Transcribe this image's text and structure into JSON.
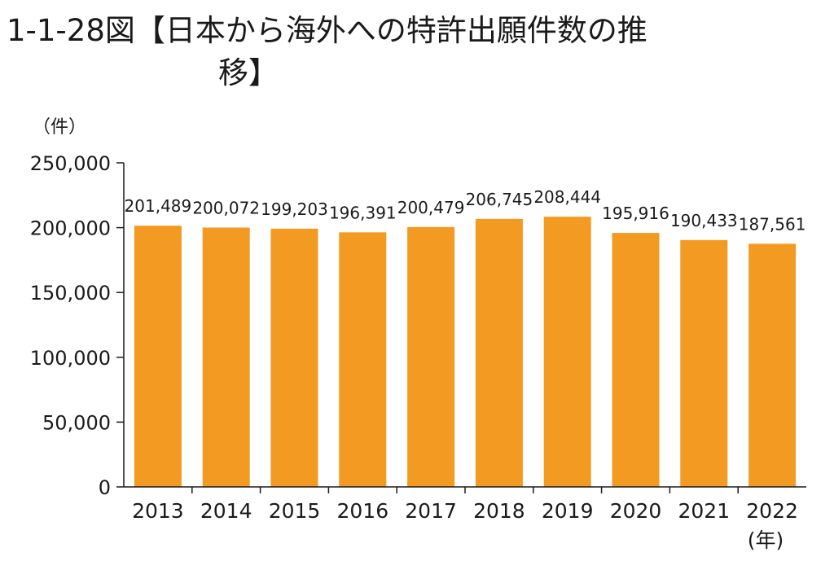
{
  "title": {
    "line1": "1-1-28図【日本から海外への特許出願件数の推",
    "line2": "移】"
  },
  "chart_data": {
    "type": "bar",
    "title": "1-1-28図【日本から海外への特許出願件数の推移】",
    "y_unit": "（件）",
    "x_unit": "(年)",
    "categories": [
      "2013",
      "2014",
      "2015",
      "2016",
      "2017",
      "2018",
      "2019",
      "2020",
      "2021",
      "2022"
    ],
    "values": [
      201489,
      200072,
      199203,
      196391,
      200479,
      206745,
      208444,
      195916,
      190433,
      187561
    ],
    "data_labels": [
      "201,489",
      "200,072",
      "199,203",
      "196,391",
      "200,479",
      "206,745",
      "208,444",
      "195,916",
      "190,433",
      "187,561"
    ],
    "ylim": [
      0,
      250000
    ],
    "y_ticks": [
      0,
      50000,
      100000,
      150000,
      200000,
      250000
    ],
    "y_tick_labels": [
      "0",
      "50,000",
      "100,000",
      "150,000",
      "200,000",
      "250,000"
    ],
    "bar_color": "#f29a21",
    "grid": false,
    "legend": "none"
  }
}
